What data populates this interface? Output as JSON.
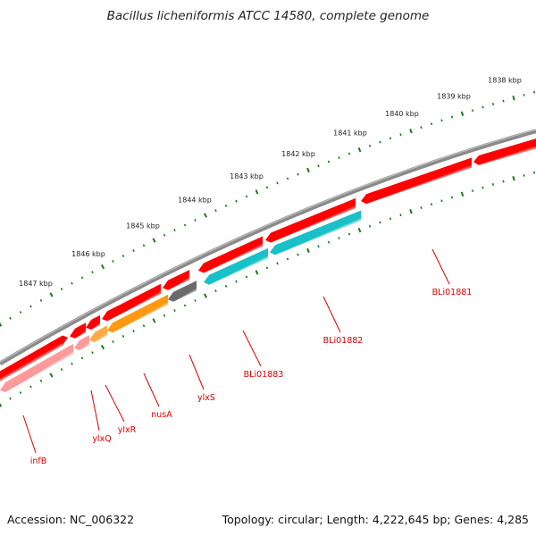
{
  "title": "Bacillus licheniformis ATCC 14580, complete genome",
  "footer": {
    "accession": "Accession: NC_006322",
    "summary": "Topology: circular; Length: 4,222,645 bp; Genes: 4,285"
  },
  "colors": {
    "backbone": "#7a7a7a",
    "forward_gene": "#ff0000",
    "reverse_gene": "#ff8a8a",
    "tick": "#1a7a1a",
    "label": "#dd0000"
  },
  "ticks": [
    "1838 kbp",
    "1839 kbp",
    "1840 kbp",
    "1841 kbp",
    "1842 kbp",
    "1843 kbp",
    "1844 kbp",
    "1845 kbp",
    "1846 kbp",
    "1847 kbp"
  ],
  "genes": [
    {
      "name": "BLi01881",
      "color": "#ff0000"
    },
    {
      "name": "BLi01882",
      "color": "#18c0c8"
    },
    {
      "name": "BLi01883",
      "color": "#18c0c8"
    },
    {
      "name": "ylxS",
      "color": "#6a6a6a"
    },
    {
      "name": "nusA",
      "color": "#ff9a10"
    },
    {
      "name": "ylxR",
      "color": "#ffaa44"
    },
    {
      "name": "ylxQ",
      "color": "#ff9a9a"
    },
    {
      "name": "infB",
      "color": "#ff9a9a"
    }
  ]
}
